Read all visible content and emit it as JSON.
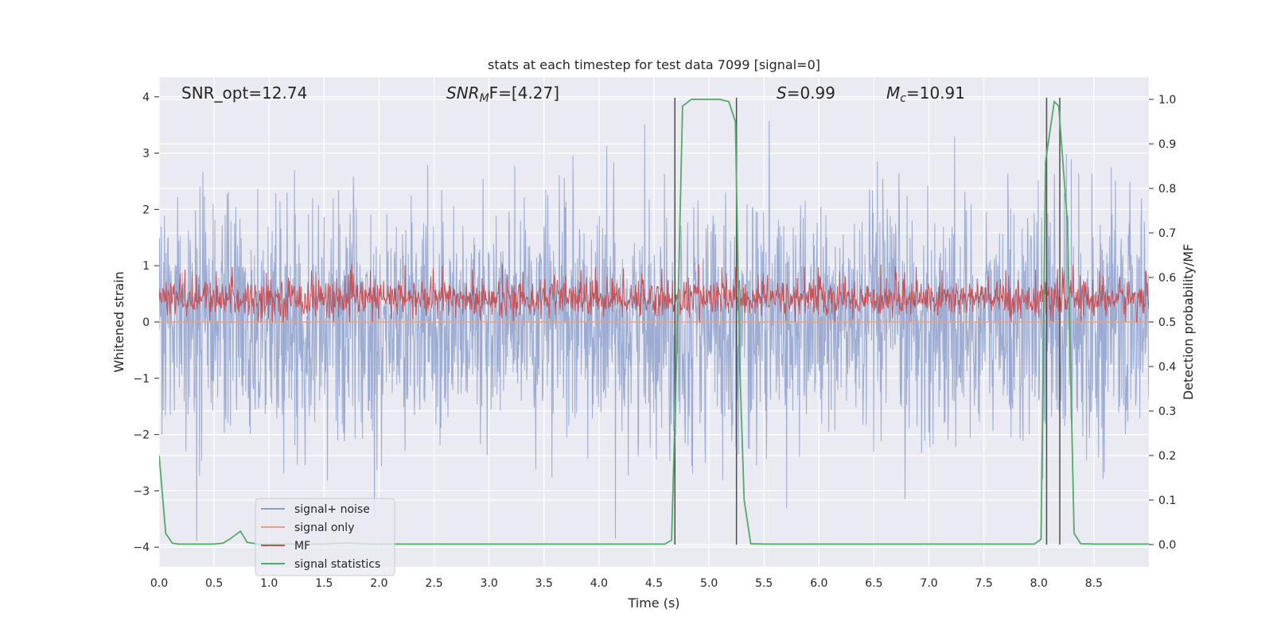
{
  "chart_data": {
    "type": "line",
    "title": "stats at each timestep for test data 7099 [signal=0]",
    "xlabel": "Time (s)",
    "ylabel_left": "Whitened strain",
    "ylabel_right": "Detection probability/MF",
    "xlim": [
      0.0,
      9.0
    ],
    "ylim_left": [
      -4.35,
      4.35
    ],
    "ylim_right": [
      -0.05,
      1.05
    ],
    "x_ticks": [
      0.0,
      0.5,
      1.0,
      1.5,
      2.0,
      2.5,
      3.0,
      3.5,
      4.0,
      4.5,
      5.0,
      5.5,
      6.0,
      6.5,
      7.0,
      7.5,
      8.0,
      8.5
    ],
    "x_tick_labels": [
      "0.0",
      "0.5",
      "1.0",
      "1.5",
      "2.0",
      "2.5",
      "3.0",
      "3.5",
      "4.0",
      "4.5",
      "5.0",
      "5.5",
      "6.0",
      "6.5",
      "7.0",
      "7.5",
      "8.0",
      "8.5"
    ],
    "y_left_ticks": [
      -4,
      -3,
      -2,
      -1,
      0,
      1,
      2,
      3,
      4
    ],
    "y_left_tick_labels": [
      "−4",
      "−3",
      "−2",
      "−1",
      "0",
      "1",
      "2",
      "3",
      "4"
    ],
    "y_right_ticks": [
      0.0,
      0.1,
      0.2,
      0.3,
      0.4,
      0.5,
      0.6,
      0.7,
      0.8,
      0.9,
      1.0
    ],
    "y_right_tick_labels": [
      "0.0",
      "0.1",
      "0.2",
      "0.3",
      "0.4",
      "0.5",
      "0.6",
      "0.7",
      "0.8",
      "0.9",
      "1.0"
    ],
    "grid": true,
    "legend_position": "lower-left",
    "colors": {
      "signal_noise": "#8da0cb",
      "signal_only": "#e8a083",
      "mf": "#c44e52",
      "statistics": "#55a868",
      "vline": "#4d4d4d",
      "plot_bg": "#eaeaf2",
      "grid": "#ffffff"
    },
    "annotations": {
      "snr_opt": "SNR_opt=12.74",
      "snr_mf_prefix": "SNR",
      "snr_mf_sub": "M",
      "snr_mf_suffix": "F=[4.27]",
      "s_var": "S",
      "s_value": "=0.99",
      "mc_var": "M",
      "mc_sub": "c",
      "mc_value": "=10.91"
    },
    "series": [
      {
        "name": "signal+ noise",
        "axis": "left",
        "style": "dense noise, approx. gaussian, std 1.05",
        "sigma": 1.05,
        "max_value": 3.95,
        "min_value": -4.0
      },
      {
        "name": "signal only",
        "axis": "left",
        "values_constant": 0.0
      },
      {
        "name": "MF",
        "axis": "right",
        "style": "dense noise, range 0.50–0.63",
        "baseline": 0.5,
        "mean": 0.553,
        "max_value": 0.63
      },
      {
        "name": "signal statistics",
        "axis": "right",
        "x": [
          0.0,
          0.06,
          0.12,
          0.18,
          0.3,
          0.5,
          0.58,
          0.64,
          0.74,
          0.8,
          0.9,
          1.2,
          1.5,
          1.7,
          1.9,
          2.2,
          3.0,
          4.0,
          4.6,
          4.66,
          4.72,
          4.76,
          4.84,
          5.0,
          5.1,
          5.18,
          5.24,
          5.28,
          5.32,
          5.38,
          5.5,
          6.5,
          7.5,
          7.96,
          8.02,
          8.06,
          8.14,
          8.18,
          8.26,
          8.32,
          8.38,
          8.5,
          9.0
        ],
        "values": [
          0.2,
          0.025,
          0.003,
          0.001,
          0.001,
          0.001,
          0.003,
          0.012,
          0.03,
          0.005,
          0.001,
          0.001,
          0.001,
          0.004,
          0.001,
          0.001,
          0.001,
          0.001,
          0.001,
          0.01,
          0.55,
          0.985,
          1.0,
          1.0,
          1.0,
          0.995,
          0.95,
          0.4,
          0.1,
          0.002,
          0.001,
          0.001,
          0.001,
          0.001,
          0.012,
          0.86,
          0.995,
          0.985,
          0.72,
          0.025,
          0.002,
          0.001,
          0.001
        ]
      }
    ],
    "vlines_x": [
      4.69,
      5.25,
      8.07,
      8.19
    ],
    "legend": [
      "signal+ noise",
      "signal only",
      "MF",
      "signal statistics"
    ]
  }
}
